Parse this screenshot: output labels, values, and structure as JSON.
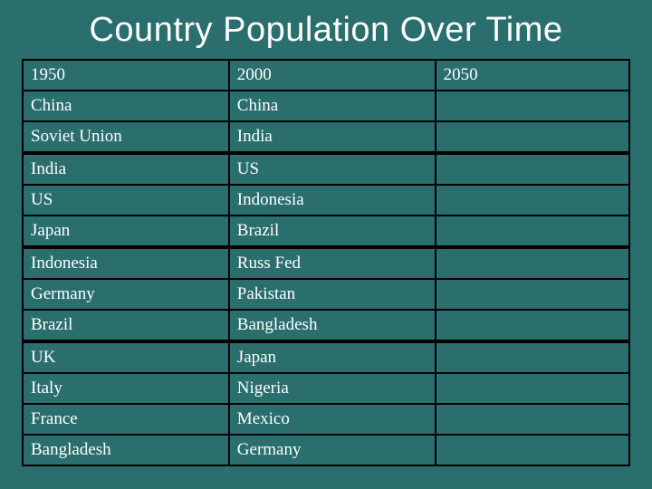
{
  "slide": {
    "title": "Country Population Over Time",
    "background_color": "#2a6e6e",
    "title_color": "#ffffff",
    "title_fontsize": 38,
    "cell_text_color": "#ffffff",
    "cell_fontsize": 19,
    "border_color": "#000000",
    "border_width": 2,
    "group_divider_width": 4,
    "columns": [
      "1950",
      "2000",
      "2050"
    ],
    "column_widths_pct": [
      34,
      34,
      32
    ],
    "groups": [
      [
        [
          "1950",
          "2000",
          "2050"
        ],
        [
          "China",
          "China",
          ""
        ],
        [
          "Soviet Union",
          "India",
          ""
        ]
      ],
      [
        [
          "India",
          "US",
          ""
        ],
        [
          "US",
          "Indonesia",
          ""
        ],
        [
          "Japan",
          "Brazil",
          ""
        ]
      ],
      [
        [
          "Indonesia",
          "Russ Fed",
          ""
        ],
        [
          "Germany",
          "Pakistan",
          ""
        ],
        [
          "Brazil",
          "Bangladesh",
          ""
        ]
      ],
      [
        [
          "UK",
          "Japan",
          ""
        ],
        [
          "Italy",
          "Nigeria",
          ""
        ],
        [
          "France",
          "Mexico",
          ""
        ],
        [
          "Bangladesh",
          "Germany",
          ""
        ]
      ]
    ]
  }
}
